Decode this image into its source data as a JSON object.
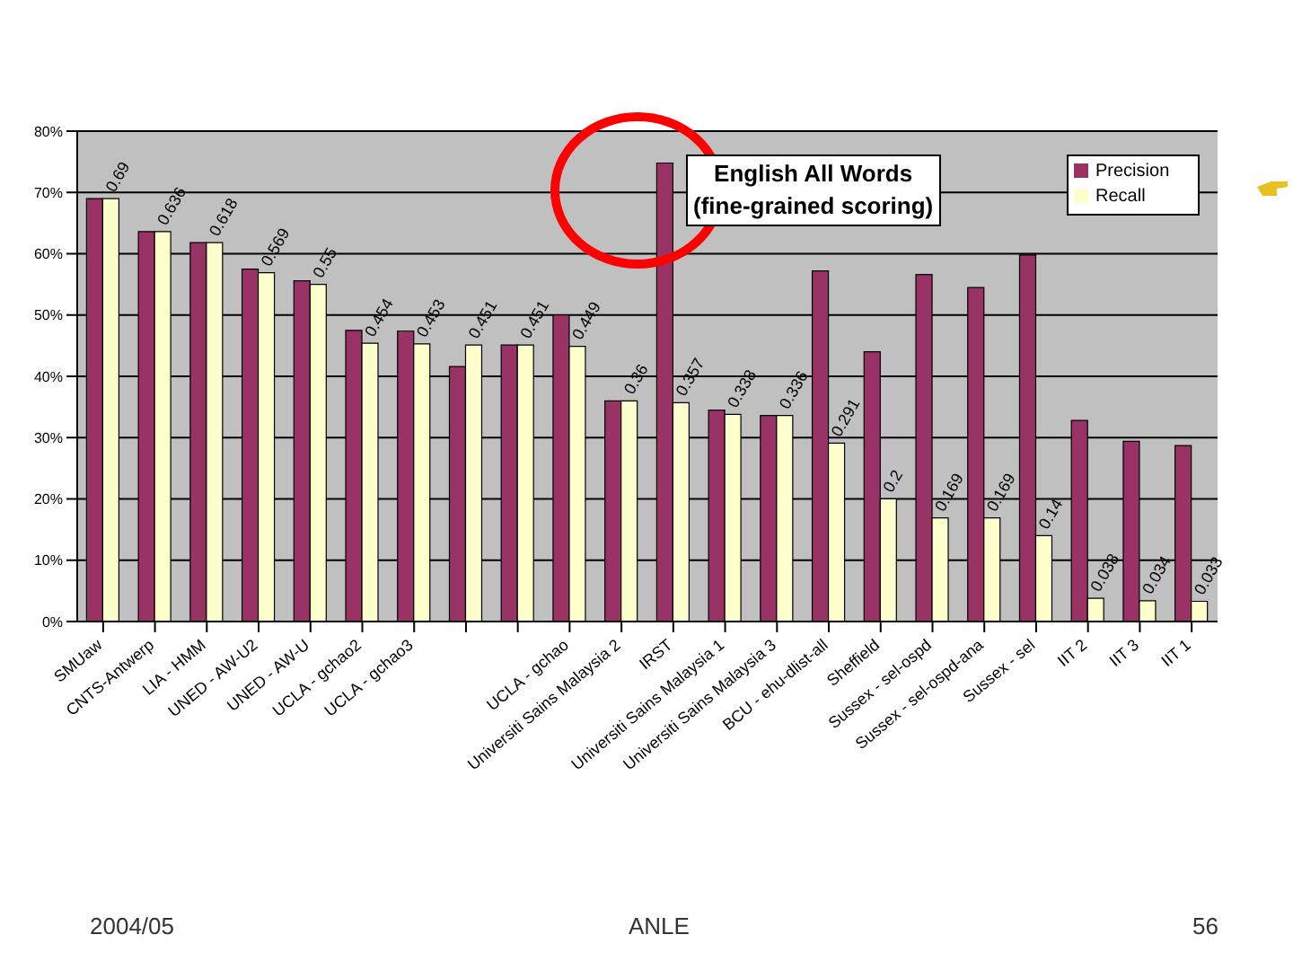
{
  "chart_data": {
    "type": "bar",
    "title": "English All Words\n(fine-grained scoring)",
    "categories": [
      "SMUaw",
      "CNTS-Antwerp",
      "LIA - HMM",
      "UNED - AW-U2",
      "UNED - AW-U",
      "UCLA - gchao2",
      "UCLA - gchao3",
      null,
      null,
      "UCLA - gchao",
      "Universiti Sains Malaysia 2",
      "IRST",
      "Universiti Sains Malaysia 1",
      "Universiti Sains Malaysia 3",
      "BCU - ehu-dlist-all",
      "Sheffield",
      "Sussex - sel-ospd",
      "Sussex - sel-ospd-ana",
      "Sussex - sel",
      "IIT 2",
      "IIT 3",
      "IIT 1"
    ],
    "series": [
      {
        "name": "Precision",
        "color": "#993366",
        "values": [
          0.69,
          0.636,
          0.618,
          0.575,
          0.556,
          0.475,
          0.474,
          0.416,
          0.451,
          0.5,
          0.36,
          0.748,
          0.345,
          0.336,
          0.572,
          0.44,
          0.566,
          0.545,
          0.598,
          0.328,
          0.294,
          0.287
        ]
      },
      {
        "name": "Recall",
        "color": "#ffffcc",
        "values": [
          0.69,
          0.636,
          0.618,
          0.569,
          0.55,
          0.454,
          0.453,
          0.451,
          0.451,
          0.449,
          0.36,
          0.357,
          0.338,
          0.336,
          0.291,
          0.2,
          0.169,
          0.169,
          0.14,
          0.038,
          0.034,
          0.033
        ],
        "value_labels": [
          "0.69",
          "0.636",
          "0.618",
          "0.569",
          "0.55",
          "0.454",
          "0.453",
          "0.451",
          "0.451",
          "0.449",
          "0.36",
          "0.357",
          "0.338",
          "0.336",
          "0.291",
          "0.2",
          "0.169",
          "0.169",
          "0.14",
          "0.038",
          "0.034",
          "0.033"
        ]
      }
    ],
    "ylim": [
      0,
      0.8
    ],
    "yticks": [
      {
        "value": 0,
        "label": "0%"
      },
      {
        "value": 0.1,
        "label": "10%"
      },
      {
        "value": 0.2,
        "label": "20%"
      },
      {
        "value": 0.3,
        "label": "30%"
      },
      {
        "value": 0.4,
        "label": "40%"
      },
      {
        "value": 0.5,
        "label": "50%"
      },
      {
        "value": 0.6,
        "label": "60%"
      },
      {
        "value": 0.7,
        "label": "70%"
      },
      {
        "value": 0.8,
        "label": "80%"
      }
    ],
    "grid": "y",
    "legend": "right",
    "annotations": [
      "2004/05",
      "ANLE",
      "56"
    ]
  }
}
